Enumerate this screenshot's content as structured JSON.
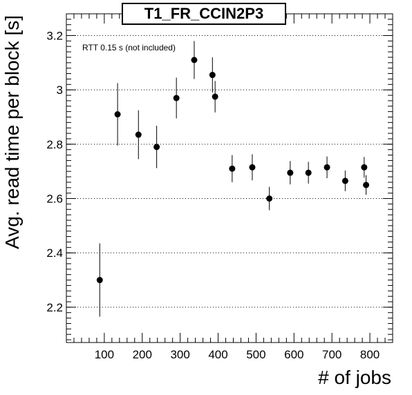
{
  "chart_data": {
    "type": "scatter",
    "title": "T1_FR_CCIN2P3",
    "xlabel": "# of jobs",
    "ylabel": "Avg. read time per block [s]",
    "annotation": "RTT 0.15 s (not included)",
    "xlim": [
      0,
      860
    ],
    "ylim": [
      2.07,
      3.28
    ],
    "x_ticks": [
      100,
      200,
      300,
      400,
      500,
      600,
      700,
      800
    ],
    "y_ticks": [
      2.2,
      2.4,
      2.6,
      2.8,
      3.0,
      3.2
    ],
    "y_tick_labels": [
      "2.2",
      "2.4",
      "2.6",
      "2.8",
      "3",
      "3.2"
    ],
    "grid": "horizontal-dotted",
    "marker_color": "#000000",
    "points": [
      {
        "x": 88,
        "y": 2.3,
        "err": 0.135
      },
      {
        "x": 135,
        "y": 2.91,
        "err": 0.115
      },
      {
        "x": 190,
        "y": 2.835,
        "err": 0.09
      },
      {
        "x": 238,
        "y": 2.79,
        "err": 0.078
      },
      {
        "x": 290,
        "y": 2.97,
        "err": 0.075
      },
      {
        "x": 337,
        "y": 3.11,
        "err": 0.07
      },
      {
        "x": 385,
        "y": 3.055,
        "err": 0.065
      },
      {
        "x": 392,
        "y": 2.975,
        "err": 0.058
      },
      {
        "x": 437,
        "y": 2.71,
        "err": 0.05
      },
      {
        "x": 490,
        "y": 2.715,
        "err": 0.048
      },
      {
        "x": 535,
        "y": 2.6,
        "err": 0.043
      },
      {
        "x": 590,
        "y": 2.695,
        "err": 0.043
      },
      {
        "x": 638,
        "y": 2.695,
        "err": 0.04
      },
      {
        "x": 687,
        "y": 2.715,
        "err": 0.04
      },
      {
        "x": 735,
        "y": 2.665,
        "err": 0.038
      },
      {
        "x": 785,
        "y": 2.715,
        "err": 0.038
      },
      {
        "x": 790,
        "y": 2.65,
        "err": 0.036
      }
    ]
  }
}
